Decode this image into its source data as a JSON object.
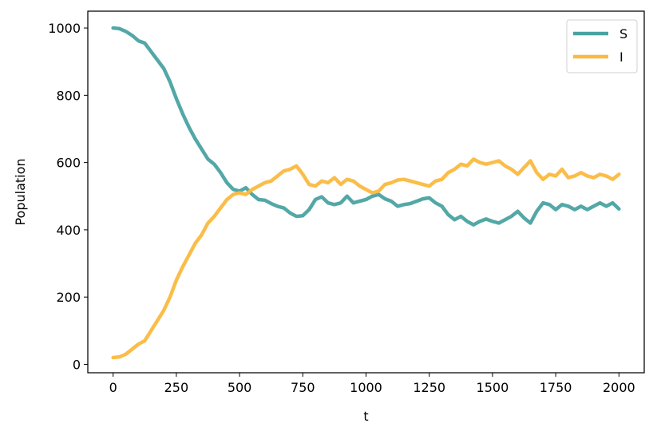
{
  "chart_data": {
    "type": "line",
    "xlabel": "t",
    "ylabel": "Population",
    "xlim": [
      -100,
      2100
    ],
    "ylim": [
      -25,
      1050
    ],
    "xticks": [
      0,
      250,
      500,
      750,
      1000,
      1250,
      1500,
      1750,
      2000
    ],
    "yticks": [
      0,
      200,
      400,
      600,
      800,
      1000
    ],
    "grid": false,
    "legend_position": "top-right",
    "series": [
      {
        "name": "S",
        "color": "#4aa3a2",
        "x": [
          0,
          25,
          50,
          75,
          100,
          125,
          150,
          175,
          200,
          225,
          250,
          275,
          300,
          325,
          350,
          375,
          400,
          425,
          450,
          475,
          500,
          525,
          550,
          575,
          600,
          625,
          650,
          675,
          700,
          725,
          750,
          775,
          800,
          825,
          850,
          875,
          900,
          925,
          950,
          975,
          1000,
          1025,
          1050,
          1075,
          1100,
          1125,
          1150,
          1175,
          1200,
          1225,
          1250,
          1275,
          1300,
          1325,
          1350,
          1375,
          1400,
          1425,
          1450,
          1475,
          1500,
          1525,
          1550,
          1575,
          1600,
          1625,
          1650,
          1675,
          1700,
          1725,
          1750,
          1775,
          1800,
          1825,
          1850,
          1875,
          1900,
          1925,
          1950,
          1975,
          2000
        ],
        "y": [
          1000,
          998,
          990,
          978,
          962,
          955,
          930,
          905,
          880,
          840,
          790,
          745,
          705,
          670,
          640,
          610,
          595,
          570,
          540,
          520,
          515,
          525,
          505,
          490,
          488,
          478,
          470,
          465,
          450,
          440,
          442,
          460,
          490,
          498,
          480,
          475,
          480,
          500,
          480,
          485,
          490,
          500,
          505,
          492,
          485,
          470,
          475,
          478,
          485,
          492,
          495,
          480,
          470,
          445,
          430,
          440,
          425,
          415,
          425,
          432,
          425,
          420,
          430,
          440,
          455,
          435,
          420,
          455,
          480,
          475,
          460,
          475,
          470,
          460,
          470,
          460,
          470,
          480,
          470,
          480,
          462
        ]
      },
      {
        "name": "I",
        "color": "#fbb93f",
        "x": [
          0,
          25,
          50,
          75,
          100,
          125,
          150,
          175,
          200,
          225,
          250,
          275,
          300,
          325,
          350,
          375,
          400,
          425,
          450,
          475,
          500,
          525,
          550,
          575,
          600,
          625,
          650,
          675,
          700,
          725,
          750,
          775,
          800,
          825,
          850,
          875,
          900,
          925,
          950,
          975,
          1000,
          1025,
          1050,
          1075,
          1100,
          1125,
          1150,
          1175,
          1200,
          1225,
          1250,
          1275,
          1300,
          1325,
          1350,
          1375,
          1400,
          1425,
          1450,
          1475,
          1500,
          1525,
          1550,
          1575,
          1600,
          1625,
          1650,
          1675,
          1700,
          1725,
          1750,
          1775,
          1800,
          1825,
          1850,
          1875,
          1900,
          1925,
          1950,
          1975,
          2000
        ],
        "y": [
          20,
          22,
          30,
          45,
          60,
          70,
          100,
          130,
          160,
          200,
          250,
          290,
          325,
          360,
          385,
          420,
          440,
          465,
          490,
          505,
          510,
          505,
          520,
          530,
          540,
          545,
          560,
          575,
          580,
          590,
          565,
          535,
          530,
          545,
          540,
          555,
          535,
          550,
          545,
          530,
          520,
          510,
          515,
          535,
          540,
          548,
          550,
          545,
          540,
          535,
          530,
          545,
          550,
          570,
          580,
          595,
          590,
          610,
          600,
          595,
          600,
          605,
          590,
          580,
          565,
          585,
          605,
          570,
          550,
          565,
          560,
          580,
          555,
          560,
          570,
          560,
          555,
          565,
          560,
          550,
          565
        ]
      }
    ]
  }
}
